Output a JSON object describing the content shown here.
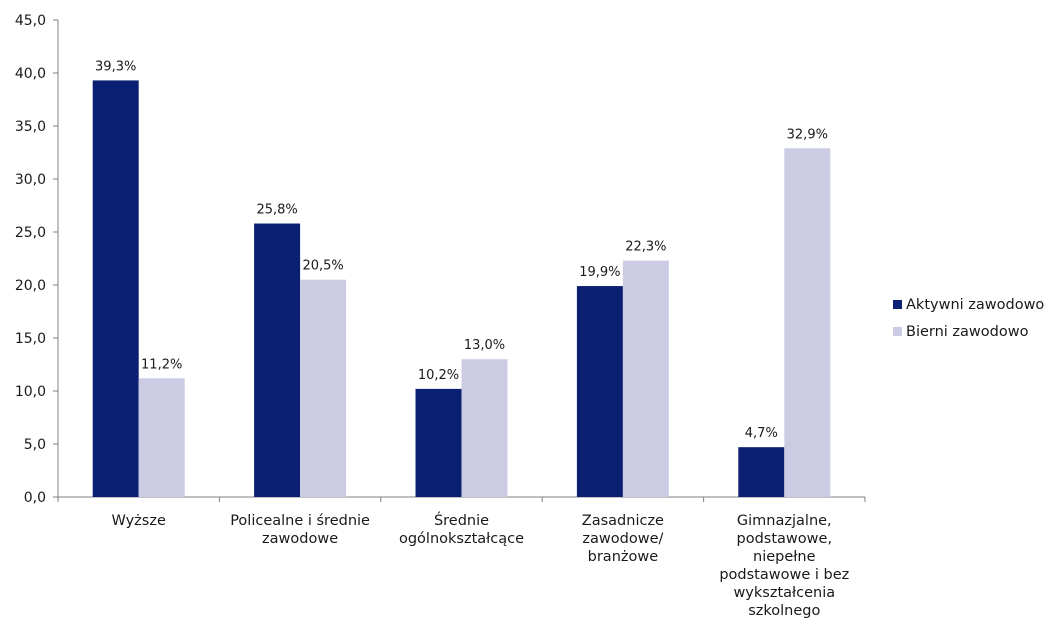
{
  "chart_data": {
    "type": "bar",
    "categories": [
      [
        "Wyższe"
      ],
      [
        "Policealne i średnie",
        "zawodowe"
      ],
      [
        "Średnie",
        "ogólnokształcące"
      ],
      [
        "Zasadnicze",
        "zawodowe/",
        "branżowe"
      ],
      [
        "Gimnazjalne,",
        "podstawowe,",
        "niepełne",
        "podstawowe i bez",
        "wykształcenia",
        "szkolnego"
      ]
    ],
    "series": [
      {
        "name": "Aktywni zawodowo",
        "color": "#0b1f73",
        "values": [
          39.3,
          25.8,
          10.2,
          19.9,
          4.7
        ],
        "labels": [
          "39,3%",
          "25,8%",
          "10,2%",
          "19,9%",
          "4,7%"
        ]
      },
      {
        "name": "Bierni zawodowo",
        "color": "#cbcce3",
        "values": [
          11.2,
          20.5,
          13.0,
          22.3,
          32.9
        ],
        "labels": [
          "11,2%",
          "20,5%",
          "13,0%",
          "22,3%",
          "32,9%"
        ]
      }
    ],
    "ylim": [
      0,
      45
    ],
    "yticks": [
      "0,0",
      "5,0",
      "10,0",
      "15,0",
      "20,0",
      "25,0",
      "30,0",
      "35,0",
      "40,0",
      "45,0"
    ],
    "grid": false,
    "legend_position": "right"
  }
}
